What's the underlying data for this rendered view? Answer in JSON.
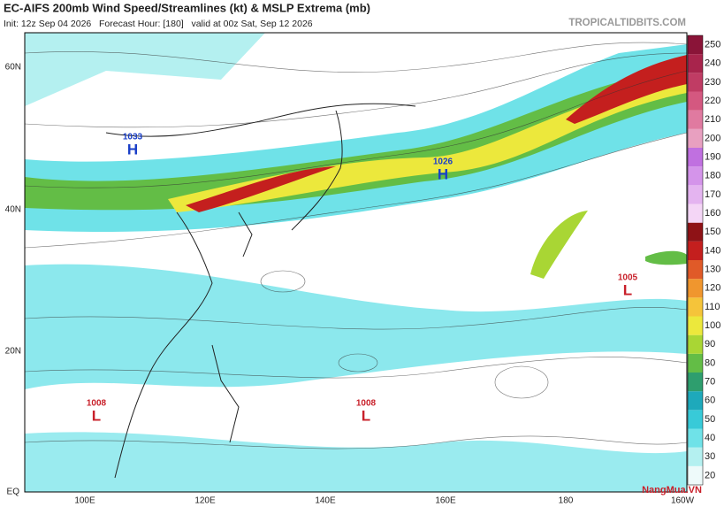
{
  "header": {
    "title": "EC-AIFS 200mb Wind Speed/Streamlines (kt) & MSLP Extrema (mb)",
    "subtitle": "Init: 12z Sep 04 2026   Forecast Hour: [180]   valid at 00z Sat, Sep 12 2026",
    "site": "TROPICALTIDBITS.COM"
  },
  "latitudes": [
    "60N",
    "40N",
    "20N",
    "EQ"
  ],
  "longitudes": [
    "100E",
    "120E",
    "140E",
    "160E",
    "180",
    "160W"
  ],
  "pressure_systems": [
    {
      "symbol": "H",
      "value": "1033"
    },
    {
      "symbol": "H",
      "value": "1026"
    },
    {
      "symbol": "L",
      "value": "1005"
    },
    {
      "symbol": "L",
      "value": "1008"
    },
    {
      "symbol": "L",
      "value": "1008"
    }
  ],
  "colorbar": {
    "labels": [
      "20",
      "30",
      "40",
      "50",
      "60",
      "70",
      "80",
      "90",
      "100",
      "110",
      "120",
      "130",
      "140",
      "150",
      "160",
      "170",
      "180",
      "190",
      "200",
      "210",
      "220",
      "230",
      "240",
      "250"
    ],
    "colors": [
      "#eefafa",
      "#b4f0f0",
      "#6fe2e8",
      "#38cad8",
      "#1ea9bb",
      "#2e9e6e",
      "#63bd46",
      "#a9d634",
      "#ece83c",
      "#f5c43a",
      "#f0962e",
      "#e05a28",
      "#c41f1e",
      "#8e1216",
      "#f4d6f6",
      "#e4b4f0",
      "#d494ea",
      "#c070e0",
      "#e8a0c0",
      "#e07aa0",
      "#d45880",
      "#c03c64",
      "#a8244c",
      "#8a1438"
    ]
  },
  "watermark": "NangMua.VN"
}
